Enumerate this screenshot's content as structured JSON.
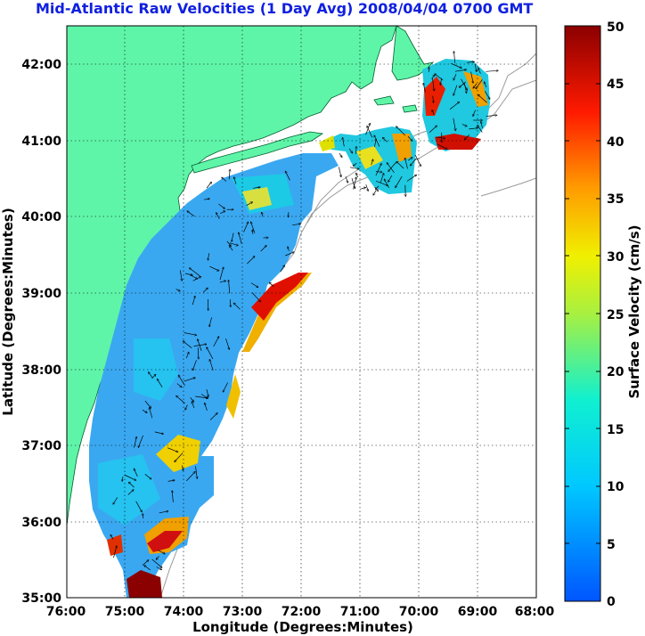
{
  "title": "Mid-Atlantic Raw Velocities (1 Day Avg) 2008/04/04 0700 GMT",
  "colors": {
    "land": "#5ff5a8",
    "grid": "#000000",
    "isobath": "#9a9a9a"
  },
  "chart_data": {
    "type": "heatmap",
    "title": "Mid-Atlantic Raw Velocities (1 Day Avg) 2008/04/04 0700 GMT",
    "xlabel": "Longitude (Degrees:Minutes)",
    "ylabel": "Latitude (Degrees:Minutes)",
    "x_ticks": [
      "76:00",
      "75:00",
      "74:00",
      "73:00",
      "72:00",
      "71:00",
      "70:00",
      "69:00",
      "68:00"
    ],
    "y_ticks": [
      "42:00",
      "41:00",
      "40:00",
      "39:00",
      "38:00",
      "37:00",
      "36:00",
      "35:00"
    ],
    "xlim": [
      -76,
      -68
    ],
    "ylim": [
      35,
      42.5
    ],
    "grid": true,
    "colorbar": {
      "label": "Surface Velocity (cm/s)",
      "range": [
        0,
        50
      ],
      "ticks": [
        "0",
        "5",
        "10",
        "15",
        "20",
        "25",
        "30",
        "35",
        "40",
        "45",
        "50"
      ],
      "colormap": "jet"
    }
  }
}
